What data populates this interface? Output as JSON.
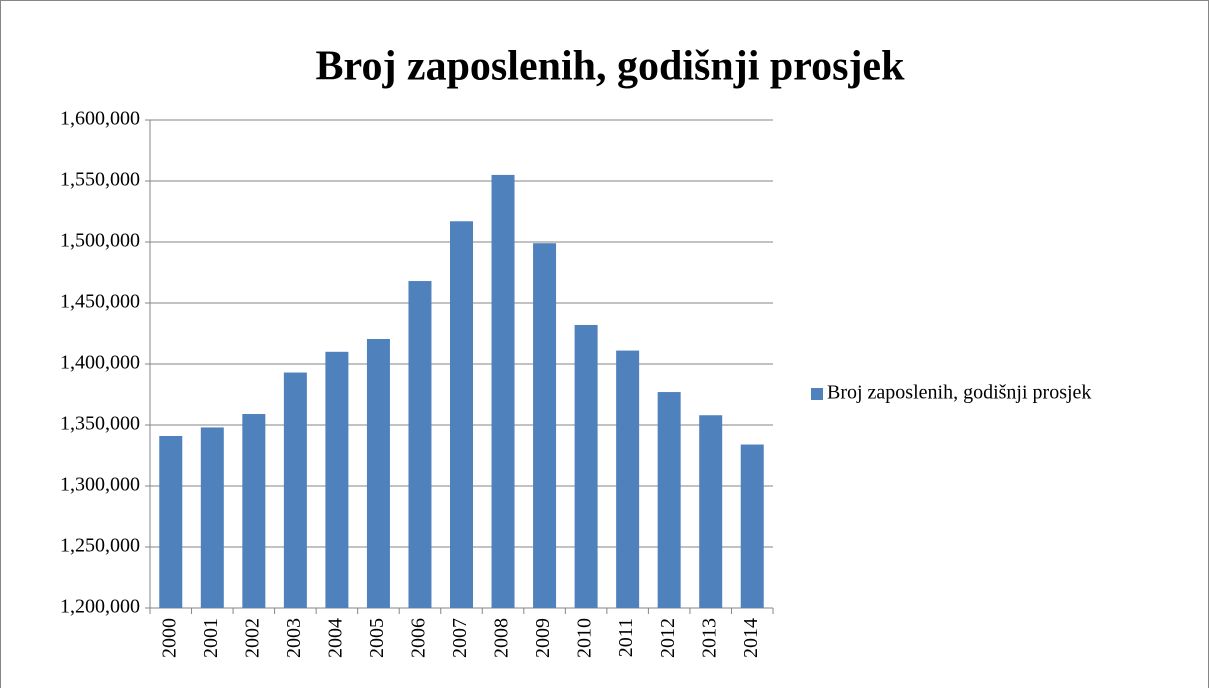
{
  "chart_data": {
    "type": "bar",
    "title": "Broj zaposlenih, godišnji prosjek",
    "categories": [
      "2000",
      "2001",
      "2002",
      "2003",
      "2004",
      "2005",
      "2006",
      "2007",
      "2008",
      "2009",
      "2010",
      "2011",
      "2012",
      "2013",
      "2014"
    ],
    "series": [
      {
        "name": "Broj zaposlenih, godišnji prosjek",
        "color": "#4f81bd",
        "values": [
          1341000,
          1348000,
          1359000,
          1393000,
          1410000,
          1420500,
          1468000,
          1517000,
          1555000,
          1499000,
          1432000,
          1411000,
          1377000,
          1358000,
          1334000
        ]
      }
    ],
    "ylim": [
      1200000,
      1600000
    ],
    "yticks": [
      {
        "value": 1200000,
        "label": "1,200,000"
      },
      {
        "value": 1250000,
        "label": "1,250,000"
      },
      {
        "value": 1300000,
        "label": "1,300,000"
      },
      {
        "value": 1350000,
        "label": "1,350,000"
      },
      {
        "value": 1400000,
        "label": "1,400,000"
      },
      {
        "value": 1450000,
        "label": "1,450,000"
      },
      {
        "value": 1500000,
        "label": "1,500,000"
      },
      {
        "value": 1550000,
        "label": "1,550,000"
      },
      {
        "value": 1600000,
        "label": "1,600,000"
      }
    ],
    "grid": true,
    "legend": "right"
  }
}
